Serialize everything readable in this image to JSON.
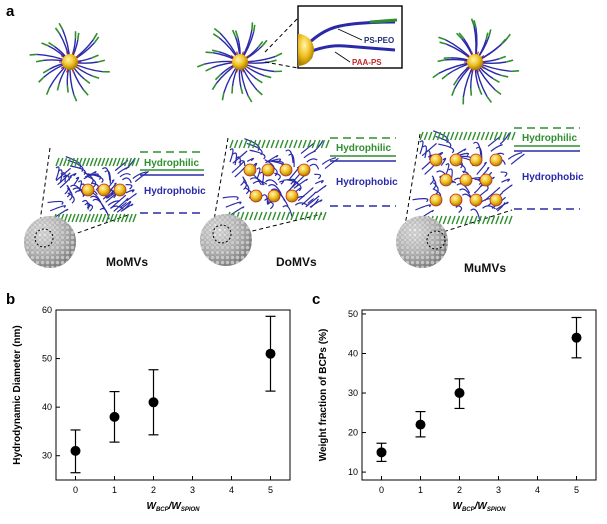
{
  "panels": {
    "a": "a",
    "b": "b",
    "c": "c"
  },
  "schematic": {
    "legend_ps_peo": "PS-PEO",
    "legend_paa_ps": "PAA-PS",
    "vesicles": [
      {
        "name": "MoMVs",
        "hydrophilic": "Hydrophilic",
        "hydrophobic": "Hydrophobic"
      },
      {
        "name": "DoMVs",
        "hydrophilic": "Hydrophilic",
        "hydrophobic": "Hydrophobic"
      },
      {
        "name": "MuMVs",
        "hydrophilic": "Hydrophilic",
        "hydrophobic": "Hydrophobic"
      }
    ],
    "colors": {
      "peo": "#2f8f2f",
      "ps": "#2a2aa8",
      "paa": "#c0282a",
      "spion": "#e8c020"
    }
  },
  "chart_data": [
    {
      "type": "scatter",
      "panel": "b",
      "x": [
        0,
        1,
        2,
        5
      ],
      "y": [
        31,
        38,
        41,
        51
      ],
      "yerr_low": [
        26.5,
        32.8,
        34.3,
        43.3
      ],
      "yerr_high": [
        35.3,
        43.2,
        47.7,
        58.7
      ],
      "xticks": [
        0,
        1,
        2,
        3,
        4,
        5
      ],
      "yticks": [
        30,
        40,
        50,
        60
      ],
      "xlim": [
        -0.5,
        5.5
      ],
      "ylim": [
        25,
        60
      ],
      "ylabel": "Hydrodynamic Diameter (nm)",
      "xlabel_main1": "W",
      "xlabel_sub1": "BCP",
      "xlabel_slash": "/W",
      "xlabel_sub2": "SPION"
    },
    {
      "type": "scatter",
      "panel": "c",
      "x": [
        0,
        1,
        2,
        5
      ],
      "y": [
        15,
        22,
        30,
        44
      ],
      "yerr_low": [
        12.7,
        18.9,
        26.1,
        38.9
      ],
      "yerr_high": [
        17.3,
        25.3,
        33.6,
        49.1
      ],
      "xticks": [
        0,
        1,
        2,
        3,
        4,
        5
      ],
      "yticks": [
        10,
        20,
        30,
        40,
        50
      ],
      "xlim": [
        -0.5,
        5.5
      ],
      "ylim": [
        8,
        51
      ],
      "ylabel": "Weight fraction of BCPs (%)",
      "xlabel_main1": "W",
      "xlabel_sub1": "BCP",
      "xlabel_slash": "/W",
      "xlabel_sub2": "SPION"
    }
  ]
}
